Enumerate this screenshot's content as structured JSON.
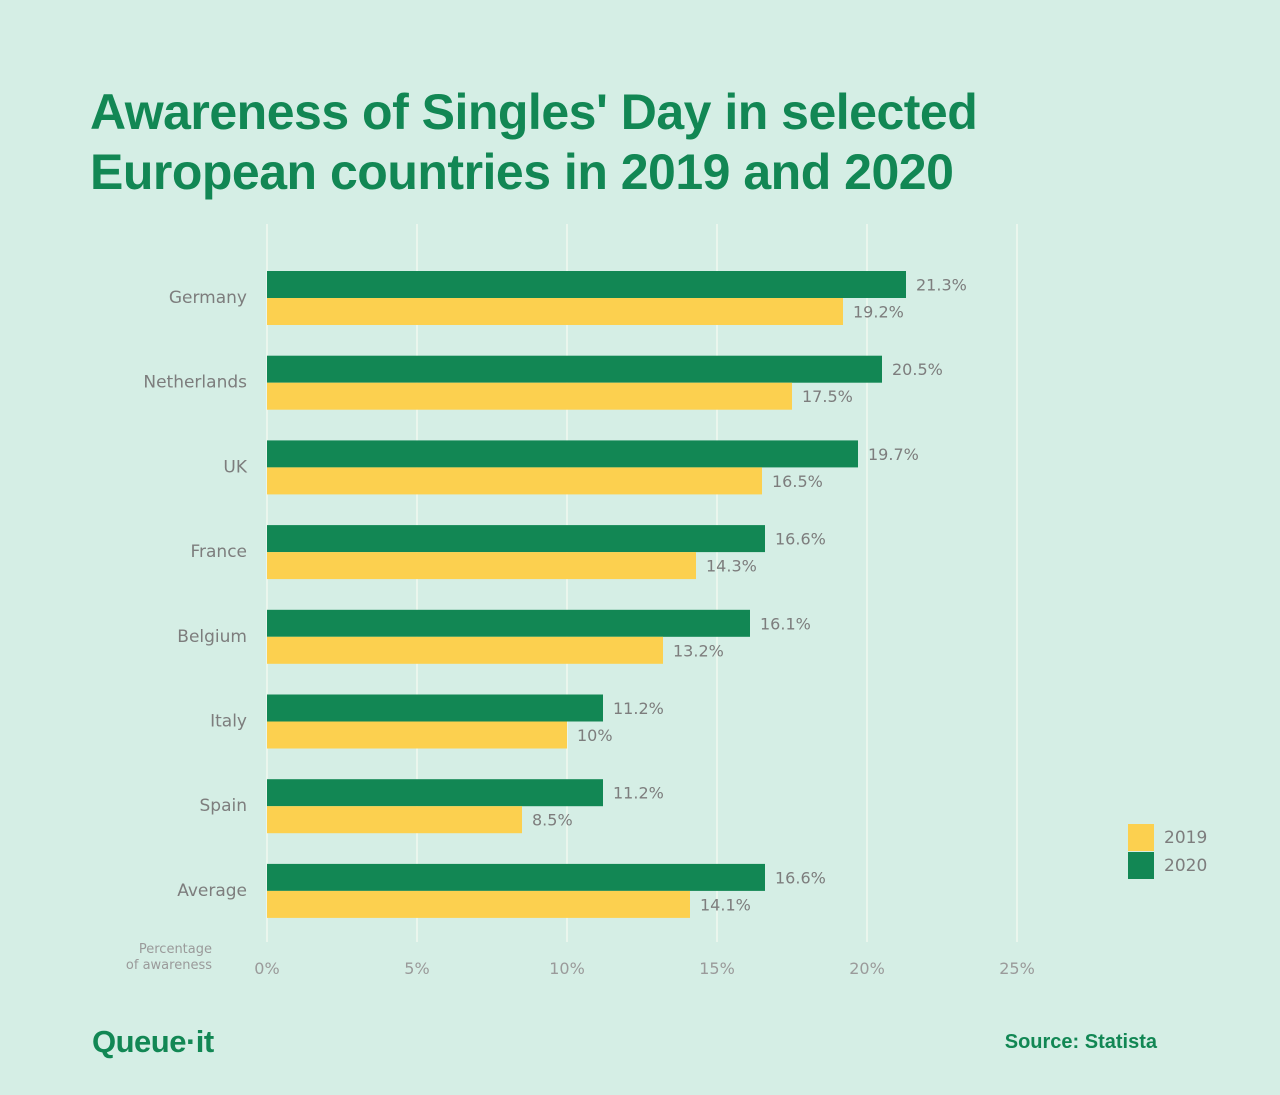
{
  "title_lines": [
    "Awareness of Singles' Day in selected",
    "European countries in 2019 and 2020"
  ],
  "axis_title_lines": [
    "Percentage",
    "of awareness"
  ],
  "legend": [
    {
      "label": "2019",
      "color": "#fcd04f"
    },
    {
      "label": "2020",
      "color": "#128754"
    }
  ],
  "logo_text": "Queue·it",
  "source": "Source: Statista",
  "chart_data": {
    "type": "bar",
    "orientation": "horizontal",
    "categories": [
      "Germany",
      "Netherlands",
      "UK",
      "France",
      "Belgium",
      "Italy",
      "Spain",
      "Average"
    ],
    "series": [
      {
        "name": "2020",
        "color": "#128754",
        "values": [
          21.3,
          20.5,
          19.7,
          16.6,
          16.1,
          11.2,
          11.2,
          16.6
        ],
        "labels": [
          "21.3%",
          "20.5%",
          "19.7%",
          "16.6%",
          "16.1%",
          "11.2%",
          "11.2%",
          "16.6%"
        ]
      },
      {
        "name": "2019",
        "color": "#fcd04f",
        "values": [
          19.2,
          17.5,
          16.5,
          14.3,
          13.2,
          10,
          8.5,
          14.1
        ],
        "labels": [
          "19.2%",
          "17.5%",
          "16.5%",
          "14.3%",
          "13.2%",
          "10%",
          "8.5%",
          "14.1%"
        ]
      }
    ],
    "x_ticks": [
      0,
      5,
      10,
      15,
      20,
      25
    ],
    "x_tick_labels": [
      "0%",
      "5%",
      "10%",
      "15%",
      "20%",
      "25%"
    ],
    "xlim": [
      0,
      25
    ],
    "grid": true,
    "legend_position": "bottom-right"
  }
}
